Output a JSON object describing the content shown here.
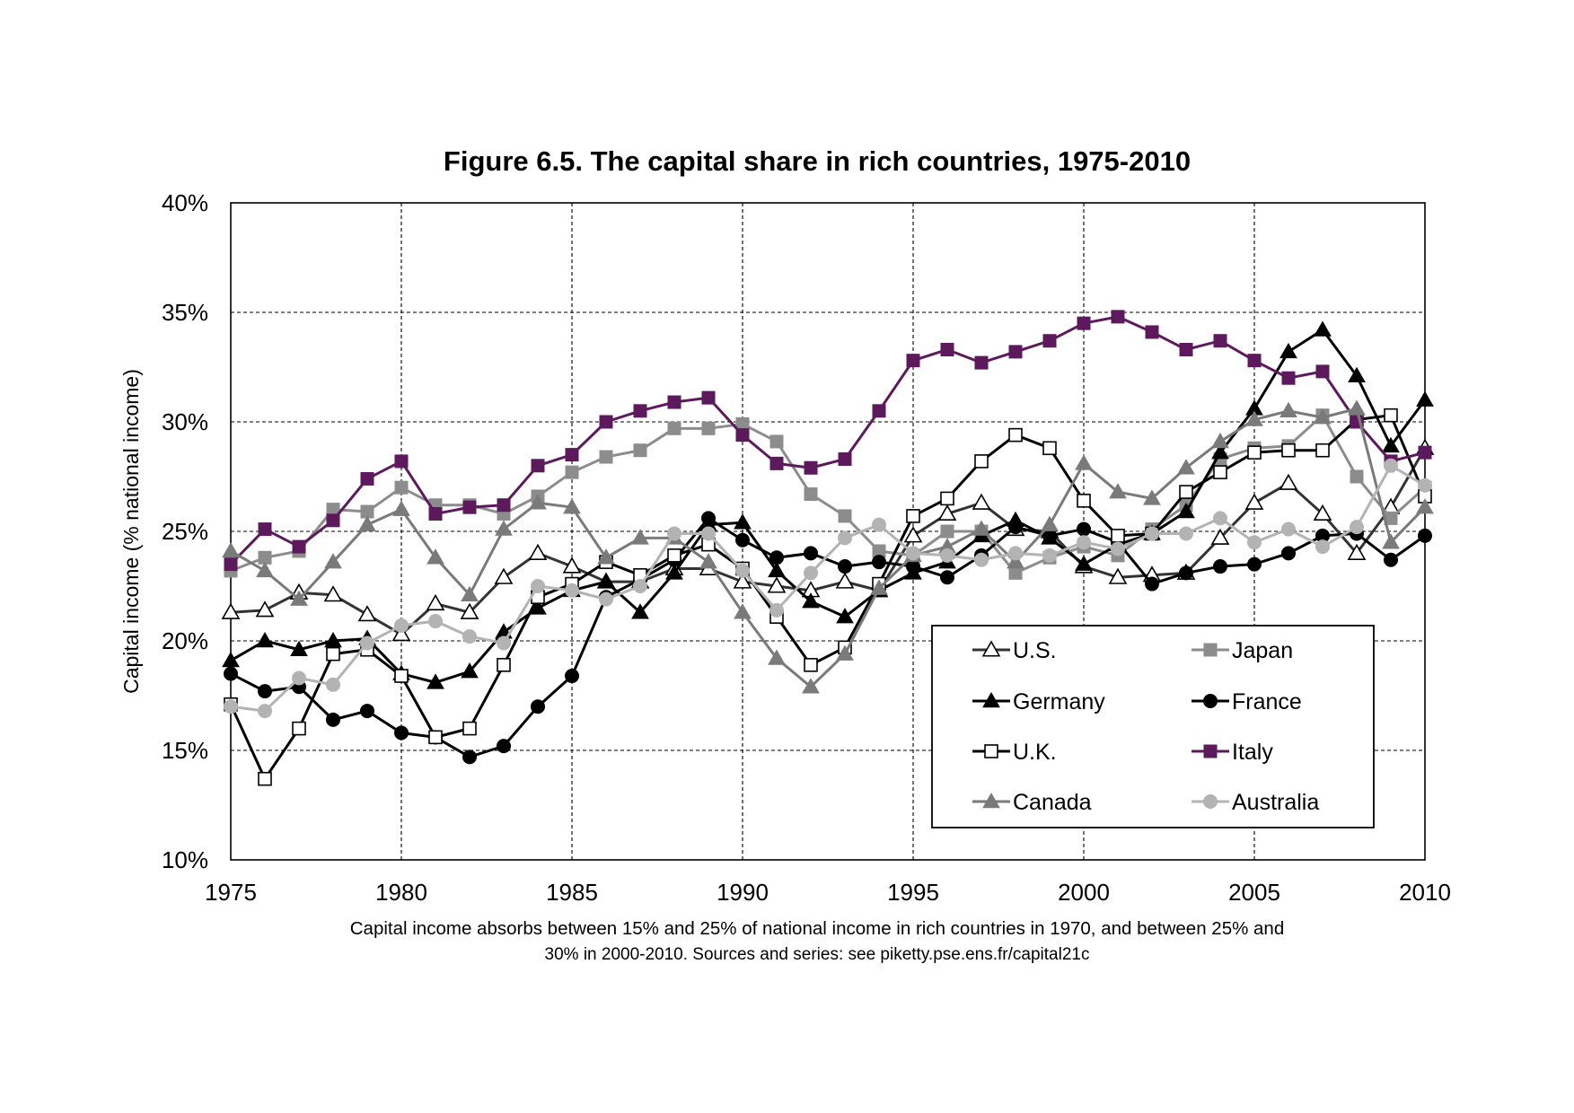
{
  "chart_data": {
    "type": "line",
    "title": "Figure 6.5. The capital share in rich countries, 1975-2010",
    "xlabel": "",
    "ylabel": "Capital income (% national income)",
    "x": [
      1975,
      1976,
      1977,
      1978,
      1979,
      1980,
      1981,
      1982,
      1983,
      1984,
      1985,
      1986,
      1987,
      1988,
      1989,
      1990,
      1991,
      1992,
      1993,
      1994,
      1995,
      1996,
      1997,
      1998,
      1999,
      2000,
      2001,
      2002,
      2003,
      2004,
      2005,
      2006,
      2007,
      2008,
      2009,
      2010
    ],
    "xticks": [
      1975,
      1980,
      1985,
      1990,
      1995,
      2000,
      2005,
      2010
    ],
    "xtick_labels": [
      "1975",
      "1980",
      "1985",
      "1990",
      "1995",
      "2000",
      "2005",
      "2010"
    ],
    "xlim": [
      1975,
      2010
    ],
    "ylim": [
      10,
      40
    ],
    "yticks": [
      10,
      15,
      20,
      25,
      30,
      35,
      40
    ],
    "ytick_labels": [
      "10%",
      "15%",
      "20%",
      "25%",
      "30%",
      "35%",
      "40%"
    ],
    "grid": true,
    "legend_position": "bottom-right",
    "series": [
      {
        "name": "U.S.",
        "color": "#333333",
        "marker": "triangle-open",
        "values": [
          21.3,
          21.4,
          22.2,
          22.1,
          21.2,
          20.3,
          21.7,
          21.3,
          22.9,
          24.0,
          23.4,
          22.7,
          22.7,
          23.3,
          23.3,
          22.7,
          22.5,
          22.3,
          22.7,
          22.3,
          24.8,
          25.8,
          26.3,
          25.1,
          25.0,
          23.4,
          22.9,
          23.0,
          23.1,
          24.7,
          26.3,
          27.2,
          25.8,
          24.0,
          26.1,
          28.8
        ]
      },
      {
        "name": "Japan",
        "color": "#8c8c8c",
        "marker": "square",
        "values": [
          23.2,
          23.8,
          24.1,
          26.0,
          25.9,
          27.0,
          26.2,
          26.2,
          25.8,
          26.6,
          27.7,
          28.4,
          28.7,
          29.7,
          29.7,
          29.9,
          29.1,
          26.7,
          25.7,
          24.1,
          23.9,
          25.0,
          25.0,
          23.1,
          23.8,
          24.3,
          23.9,
          25.1,
          26.2,
          28.3,
          28.8,
          28.9,
          30.3,
          27.5,
          25.6,
          27.0
        ]
      },
      {
        "name": "Germany",
        "color": "#000000",
        "marker": "triangle",
        "values": [
          19.1,
          20.0,
          19.6,
          20.0,
          20.1,
          18.5,
          18.1,
          18.6,
          20.4,
          21.5,
          22.3,
          22.7,
          21.3,
          23.1,
          25.3,
          25.4,
          23.2,
          21.8,
          21.1,
          22.3,
          23.1,
          23.6,
          24.8,
          25.5,
          24.7,
          23.5,
          24.4,
          24.9,
          25.9,
          28.6,
          30.6,
          33.2,
          34.2,
          32.1,
          28.9,
          31.0
        ]
      },
      {
        "name": "France",
        "color": "#000000",
        "marker": "circle",
        "values": [
          18.5,
          17.7,
          17.9,
          16.4,
          16.8,
          15.8,
          15.6,
          14.7,
          15.2,
          17.0,
          18.4,
          22.0,
          22.8,
          23.7,
          25.6,
          24.6,
          23.8,
          24.0,
          23.4,
          23.6,
          23.4,
          22.9,
          23.9,
          25.2,
          24.8,
          25.1,
          24.5,
          22.6,
          23.1,
          23.4,
          23.5,
          24.0,
          24.8,
          24.9,
          23.7,
          24.8
        ]
      },
      {
        "name": "U.K.",
        "color": "#000000",
        "marker": "square-open",
        "values": [
          17.1,
          13.7,
          16.0,
          19.4,
          19.6,
          18.4,
          15.6,
          16.0,
          18.9,
          22.0,
          22.6,
          23.6,
          23.0,
          23.9,
          24.4,
          23.3,
          21.1,
          18.9,
          19.7,
          22.6,
          25.7,
          26.5,
          28.2,
          29.4,
          28.8,
          26.4,
          24.8,
          24.9,
          26.8,
          27.7,
          28.6,
          28.7,
          28.7,
          30.1,
          30.3,
          26.6
        ]
      },
      {
        "name": "Italy",
        "color": "#5c1a5c",
        "marker": "square",
        "values": [
          23.5,
          25.1,
          24.3,
          25.5,
          27.4,
          28.2,
          25.8,
          26.1,
          26.2,
          28.0,
          28.5,
          30.0,
          30.5,
          30.9,
          31.1,
          29.4,
          28.1,
          27.9,
          28.3,
          30.5,
          32.8,
          33.3,
          32.7,
          33.2,
          33.7,
          34.5,
          34.8,
          34.1,
          33.3,
          33.7,
          32.8,
          32.0,
          32.3,
          30.0,
          28.2,
          28.6
        ]
      },
      {
        "name": "Canada",
        "color": "#7a7a7a",
        "marker": "triangle",
        "values": [
          24.1,
          23.2,
          21.9,
          23.6,
          25.3,
          26.0,
          23.8,
          22.1,
          25.1,
          26.3,
          26.1,
          23.8,
          24.7,
          24.7,
          23.6,
          21.3,
          19.2,
          17.9,
          19.4,
          22.4,
          23.9,
          24.3,
          25.1,
          23.6,
          25.3,
          28.1,
          26.8,
          26.5,
          27.9,
          29.1,
          30.1,
          30.5,
          30.2,
          30.6,
          24.5,
          26.1
        ]
      },
      {
        "name": "Australia",
        "color": "#b3b3b3",
        "marker": "circle",
        "values": [
          17.0,
          16.8,
          18.3,
          18.0,
          19.9,
          20.7,
          20.9,
          20.2,
          19.9,
          22.5,
          22.3,
          21.9,
          22.5,
          24.9,
          24.9,
          23.2,
          21.4,
          23.1,
          24.7,
          25.3,
          24.0,
          23.9,
          23.7,
          24.0,
          23.9,
          24.5,
          24.2,
          24.9,
          24.9,
          25.6,
          24.5,
          25.1,
          24.3,
          25.2,
          28.0,
          27.1
        ]
      }
    ]
  },
  "caption": {
    "line1": "Capital income absorbs between 15% and 25% of national income in rich countries in 1970, and between 25% and",
    "line2": "30% in 2000-2010. Sources and series: see piketty.pse.ens.fr/capital21c"
  }
}
